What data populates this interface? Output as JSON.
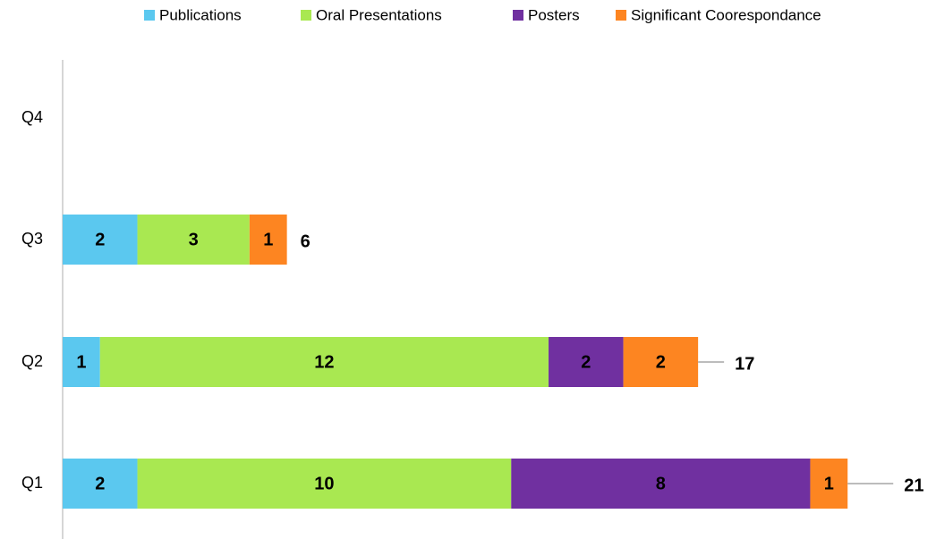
{
  "chart_data": {
    "type": "stacked-bar-horizontal",
    "categories": [
      "Q1",
      "Q2",
      "Q3",
      "Q4"
    ],
    "series": [
      {
        "name": "Publications",
        "color": "#5bc8ef",
        "values": [
          2,
          1,
          2,
          null
        ]
      },
      {
        "name": "Oral Presentations",
        "color": "#a9e851",
        "values": [
          10,
          12,
          3,
          null
        ]
      },
      {
        "name": "Posters",
        "color": "#7030a0",
        "values": [
          8,
          2,
          null,
          null
        ]
      },
      {
        "name": "Significant Coorespondance",
        "color": "#fd8521",
        "values": [
          1,
          2,
          1,
          null
        ]
      }
    ],
    "totals": [
      21,
      17,
      6,
      null
    ],
    "xlim": [
      0,
      22
    ],
    "legend": "top"
  }
}
